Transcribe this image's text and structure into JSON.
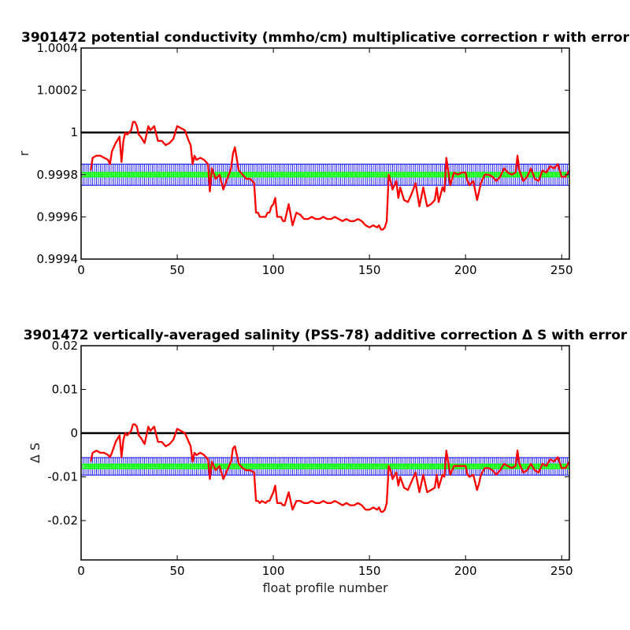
{
  "chart_data": [
    {
      "type": "line",
      "title": "3901472 potential conductivity (mmho/cm) multiplicative correction r with error",
      "xlabel": "",
      "ylabel": "r",
      "xlim": [
        0,
        254
      ],
      "ylim": [
        0.9994,
        1.0004
      ],
      "x_ticks": [
        0,
        50,
        100,
        150,
        200,
        250
      ],
      "y_ticks": [
        0.9994,
        0.9996,
        0.9998,
        1,
        1.0002,
        1.0004
      ],
      "x_tick_labels": [
        "0",
        "50",
        "100",
        "150",
        "200",
        "250"
      ],
      "y_tick_labels": [
        "0.9994",
        "0.9996",
        "0.9998",
        "1",
        "1.0002",
        "1.0004"
      ],
      "grid": false,
      "colors": {
        "series": "#ff0000",
        "reference": "#000000",
        "correction": "#00ff00",
        "error": "#0000ff"
      },
      "reference_value": 1,
      "applied_correction": {
        "value": 0.9998,
        "error": 5e-05
      },
      "series": [
        {
          "x": [
            5,
            6,
            8,
            10,
            12,
            14,
            15,
            16,
            18,
            20,
            21,
            22,
            23,
            24,
            25,
            26,
            27,
            28,
            29,
            30,
            31,
            33,
            35,
            36,
            37,
            38,
            40,
            42,
            44,
            46,
            48,
            50,
            52,
            54,
            56,
            57,
            58,
            59,
            60,
            62,
            64,
            66,
            67,
            68,
            70,
            72,
            74,
            76,
            78,
            79,
            80,
            82,
            84,
            86,
            88,
            90,
            91,
            92,
            93,
            94,
            96,
            97,
            98,
            99,
            100,
            101,
            102,
            104,
            105,
            106,
            108,
            110,
            112,
            114,
            116,
            118,
            120,
            122,
            124,
            126,
            128,
            130,
            132,
            134,
            136,
            138,
            140,
            142,
            144,
            146,
            148,
            150,
            152,
            154,
            155,
            156,
            157,
            158,
            159,
            160,
            161,
            162,
            164,
            165,
            166,
            168,
            170,
            172,
            174,
            176,
            178,
            180,
            182,
            184,
            185,
            186,
            188,
            189,
            190,
            192,
            194,
            196,
            198,
            200,
            201,
            202,
            204,
            206,
            207,
            208,
            210,
            212,
            214,
            216,
            218,
            220,
            222,
            224,
            226,
            227,
            228,
            230,
            232,
            234,
            236,
            238,
            240,
            242,
            244,
            246,
            248,
            250,
            252,
            254
          ],
          "y": [
            0.99982,
            0.99988,
            0.99989,
            0.99989,
            0.99988,
            0.99987,
            0.99985,
            0.99991,
            0.99995,
            0.99998,
            0.99986,
            0.99996,
            1.0,
            0.99999,
            1.0,
            1.00001,
            1.00005,
            1.00005,
            1.00003,
            0.99999,
            0.99998,
            0.99995,
            1.00003,
            1.00001,
            1.00002,
            1.00003,
            0.99996,
            0.99996,
            0.99994,
            0.99995,
            0.99997,
            1.00003,
            1.00002,
            1.00001,
            0.99996,
            0.99994,
            0.99985,
            0.99989,
            0.99987,
            0.99988,
            0.99987,
            0.99985,
            0.99972,
            0.99983,
            0.99978,
            0.9998,
            0.99973,
            0.99978,
            0.99983,
            0.9999,
            0.99993,
            0.99982,
            0.9998,
            0.99978,
            0.99978,
            0.99976,
            0.99962,
            0.99962,
            0.9996,
            0.9996,
            0.9996,
            0.99962,
            0.99962,
            0.99965,
            0.99966,
            0.99969,
            0.9996,
            0.9996,
            0.99958,
            0.99958,
            0.99966,
            0.99956,
            0.99962,
            0.99961,
            0.99959,
            0.99959,
            0.9996,
            0.99959,
            0.99959,
            0.9996,
            0.99959,
            0.99959,
            0.9996,
            0.99959,
            0.99958,
            0.99959,
            0.99958,
            0.99958,
            0.99959,
            0.99958,
            0.99956,
            0.99955,
            0.99956,
            0.99955,
            0.99956,
            0.99954,
            0.99954,
            0.99955,
            0.99958,
            0.9998,
            0.99977,
            0.99973,
            0.99977,
            0.99969,
            0.99974,
            0.99968,
            0.99967,
            0.99971,
            0.99976,
            0.99965,
            0.99974,
            0.99965,
            0.99966,
            0.99968,
            0.99974,
            0.99967,
            0.99974,
            0.99972,
            0.99988,
            0.99975,
            0.99981,
            0.9998,
            0.99981,
            0.99981,
            0.99977,
            0.99975,
            0.99977,
            0.99968,
            0.99972,
            0.99976,
            0.9998,
            0.9998,
            0.99979,
            0.99977,
            0.99979,
            0.99983,
            0.99981,
            0.9998,
            0.99981,
            0.99989,
            0.99982,
            0.99977,
            0.99979,
            0.99983,
            0.99978,
            0.99977,
            0.99982,
            0.99981,
            0.99984,
            0.99983,
            0.99985,
            0.99979,
            0.99979,
            0.99982
          ]
        }
      ]
    },
    {
      "type": "line",
      "title": "3901472 vertically-averaged salinity (PSS-78) additive correction Δ S with error",
      "xlabel": "float profile number",
      "ylabel": "Δ S",
      "xlim": [
        0,
        254
      ],
      "ylim": [
        -0.029,
        0.02
      ],
      "x_ticks": [
        0,
        50,
        100,
        150,
        200,
        250
      ],
      "y_ticks": [
        -0.02,
        -0.01,
        0,
        0.01,
        0.02
      ],
      "x_tick_labels": [
        "0",
        "50",
        "100",
        "150",
        "200",
        "250"
      ],
      "y_tick_labels": [
        "-0.02",
        "-0.01",
        "0",
        "0.01",
        "0.02"
      ],
      "grid": false,
      "colors": {
        "series": "#ff0000",
        "reference": "#000000",
        "correction": "#00ff00",
        "error": "#0000ff"
      },
      "reference_value": 0,
      "applied_correction": {
        "value": -0.0076,
        "error": 0.002
      },
      "series": [
        {
          "x": [
            5,
            6,
            8,
            10,
            12,
            14,
            15,
            16,
            18,
            20,
            21,
            22,
            23,
            24,
            25,
            26,
            27,
            28,
            29,
            30,
            31,
            33,
            35,
            36,
            37,
            38,
            40,
            42,
            44,
            46,
            48,
            50,
            52,
            54,
            56,
            57,
            58,
            59,
            60,
            62,
            64,
            66,
            67,
            68,
            70,
            72,
            74,
            76,
            78,
            79,
            80,
            82,
            84,
            86,
            88,
            90,
            91,
            92,
            93,
            94,
            96,
            97,
            98,
            99,
            100,
            101,
            102,
            104,
            105,
            106,
            108,
            110,
            112,
            114,
            116,
            118,
            120,
            122,
            124,
            126,
            128,
            130,
            132,
            134,
            136,
            138,
            140,
            142,
            144,
            146,
            148,
            150,
            152,
            154,
            155,
            156,
            157,
            158,
            159,
            160,
            161,
            162,
            164,
            165,
            166,
            168,
            170,
            172,
            174,
            176,
            178,
            180,
            182,
            184,
            185,
            186,
            188,
            189,
            190,
            192,
            194,
            196,
            198,
            200,
            201,
            202,
            204,
            206,
            207,
            208,
            210,
            212,
            214,
            216,
            218,
            220,
            222,
            224,
            226,
            227,
            228,
            230,
            232,
            234,
            236,
            238,
            240,
            242,
            244,
            246,
            248,
            250,
            252,
            254
          ],
          "y": [
            -0.0065,
            -0.0045,
            -0.004,
            -0.0045,
            -0.0045,
            -0.005,
            -0.0055,
            -0.0045,
            -0.002,
            -0.0005,
            -0.0055,
            -0.0015,
            0.0,
            -0.0005,
            0.0,
            0.0005,
            0.002,
            0.002,
            0.0015,
            -0.0005,
            -0.001,
            -0.0025,
            0.0015,
            0.0005,
            0.001,
            0.0015,
            -0.002,
            -0.002,
            -0.003,
            -0.0025,
            -0.0015,
            0.001,
            0.0005,
            0.0,
            -0.002,
            -0.003,
            -0.0065,
            -0.0045,
            -0.005,
            -0.0045,
            -0.005,
            -0.006,
            -0.0105,
            -0.0065,
            -0.0085,
            -0.0075,
            -0.0105,
            -0.0085,
            -0.0065,
            -0.0035,
            -0.003,
            -0.007,
            -0.008,
            -0.0085,
            -0.0085,
            -0.009,
            -0.0155,
            -0.0155,
            -0.016,
            -0.0155,
            -0.016,
            -0.0155,
            -0.0155,
            -0.0145,
            -0.0135,
            -0.012,
            -0.016,
            -0.016,
            -0.0165,
            -0.0165,
            -0.0135,
            -0.0175,
            -0.0155,
            -0.0155,
            -0.016,
            -0.016,
            -0.0155,
            -0.016,
            -0.016,
            -0.0155,
            -0.016,
            -0.016,
            -0.0155,
            -0.016,
            -0.0165,
            -0.016,
            -0.0165,
            -0.0165,
            -0.016,
            -0.0165,
            -0.0175,
            -0.0175,
            -0.017,
            -0.0175,
            -0.017,
            -0.018,
            -0.018,
            -0.0175,
            -0.016,
            -0.0075,
            -0.0085,
            -0.0105,
            -0.009,
            -0.012,
            -0.01,
            -0.0125,
            -0.013,
            -0.011,
            -0.009,
            -0.0135,
            -0.0095,
            -0.0135,
            -0.013,
            -0.0125,
            -0.0095,
            -0.0125,
            -0.0095,
            -0.01,
            -0.004,
            -0.0095,
            -0.0075,
            -0.0075,
            -0.0075,
            -0.0075,
            -0.0095,
            -0.01,
            -0.0095,
            -0.013,
            -0.0115,
            -0.0095,
            -0.008,
            -0.008,
            -0.0085,
            -0.0095,
            -0.0085,
            -0.007,
            -0.0075,
            -0.008,
            -0.0075,
            -0.004,
            -0.007,
            -0.009,
            -0.0085,
            -0.007,
            -0.0085,
            -0.009,
            -0.007,
            -0.0075,
            -0.006,
            -0.0065,
            -0.0055,
            -0.008,
            -0.008,
            -0.0065
          ]
        }
      ]
    }
  ]
}
